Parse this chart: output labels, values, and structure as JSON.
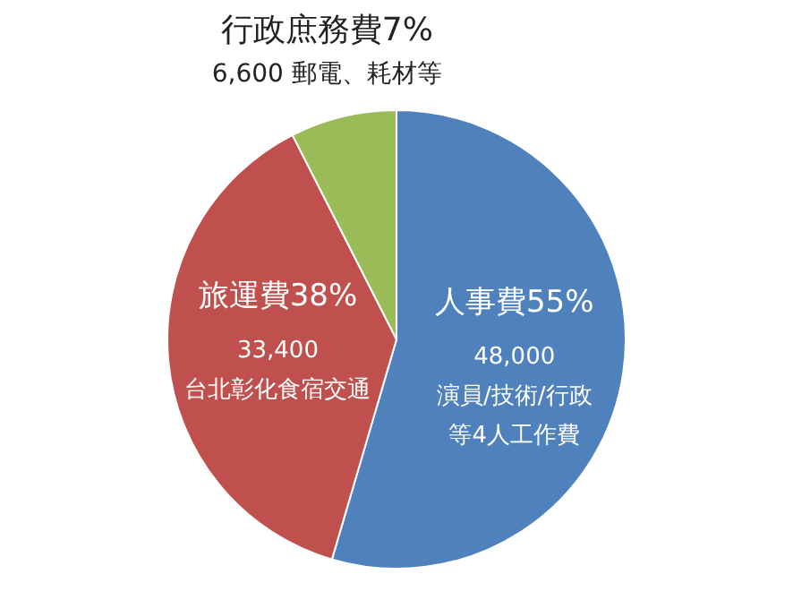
{
  "chart_data": {
    "type": "pie",
    "categories": [
      "人事費",
      "旅運費",
      "行政庶務費"
    ],
    "values": [
      48000,
      33400,
      6600
    ],
    "colors": [
      "#4f81bd",
      "#c0504d",
      "#9bbb59"
    ],
    "value_labels": [
      "48,000",
      "33,400",
      "6,600"
    ],
    "annotations": [
      "55%",
      "38%",
      "7%",
      "演員/技術/行政等4人工作費",
      "台北彰化食宿交通",
      "郵電、耗材等"
    ],
    "legend": false
  }
}
